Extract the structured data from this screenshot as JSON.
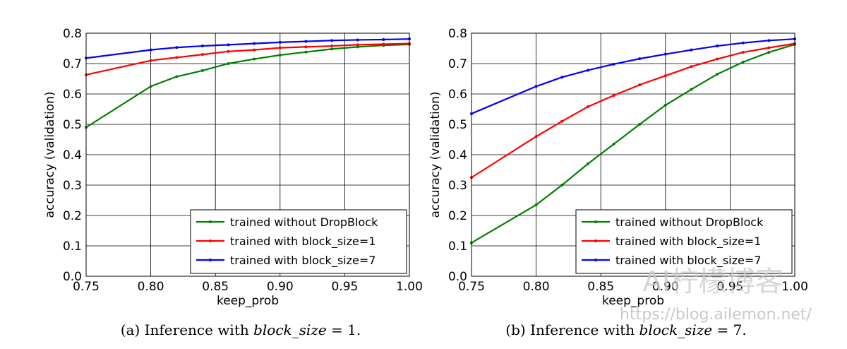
{
  "chart_data": [
    {
      "type": "line",
      "xlabel": "keep_prob",
      "ylabel": "accuracy (validation)",
      "xlim": [
        0.75,
        1.0
      ],
      "ylim": [
        0.0,
        0.8
      ],
      "xticks": [
        "0.75",
        "0.80",
        "0.85",
        "0.90",
        "0.95",
        "1.00"
      ],
      "yticks": [
        "0.0",
        "0.1",
        "0.2",
        "0.3",
        "0.4",
        "0.5",
        "0.6",
        "0.7",
        "0.8"
      ],
      "grid": true,
      "legend_position": "bottom-right",
      "x": [
        0.75,
        0.8,
        0.82,
        0.84,
        0.86,
        0.88,
        0.9,
        0.92,
        0.94,
        0.96,
        0.98,
        1.0
      ],
      "series": [
        {
          "name": "trained without DropBlock",
          "color": "#008000",
          "values": [
            0.49,
            0.625,
            0.657,
            0.677,
            0.7,
            0.715,
            0.728,
            0.738,
            0.748,
            0.755,
            0.76,
            0.763
          ]
        },
        {
          "name": "trained with block_size=1",
          "color": "#ff0000",
          "values": [
            0.663,
            0.71,
            0.72,
            0.73,
            0.74,
            0.745,
            0.752,
            0.755,
            0.758,
            0.762,
            0.764,
            0.766
          ]
        },
        {
          "name": "trained with block_size=7",
          "color": "#0000ff",
          "values": [
            0.718,
            0.745,
            0.753,
            0.758,
            0.762,
            0.766,
            0.77,
            0.773,
            0.776,
            0.778,
            0.779,
            0.781
          ]
        }
      ],
      "caption_prefix": "(a) Inference with ",
      "caption_math": "block_size",
      "caption_suffix": " = 1."
    },
    {
      "type": "line",
      "xlabel": "keep_prob",
      "ylabel": "accuracy (validation)",
      "xlim": [
        0.75,
        1.0
      ],
      "ylim": [
        0.0,
        0.8
      ],
      "xticks": [
        "0.75",
        "0.80",
        "0.85",
        "0.90",
        "0.95",
        "1.00"
      ],
      "yticks": [
        "0.0",
        "0.1",
        "0.2",
        "0.3",
        "0.4",
        "0.5",
        "0.6",
        "0.7",
        "0.8"
      ],
      "grid": true,
      "legend_position": "bottom-right",
      "x": [
        0.75,
        0.8,
        0.82,
        0.84,
        0.86,
        0.88,
        0.9,
        0.92,
        0.94,
        0.96,
        0.98,
        1.0
      ],
      "series": [
        {
          "name": "trained without DropBlock",
          "color": "#008000",
          "values": [
            0.11,
            0.235,
            0.3,
            0.37,
            0.435,
            0.5,
            0.563,
            0.615,
            0.665,
            0.705,
            0.737,
            0.763
          ]
        },
        {
          "name": "trained with block_size=1",
          "color": "#ff0000",
          "values": [
            0.325,
            0.46,
            0.51,
            0.558,
            0.595,
            0.63,
            0.66,
            0.69,
            0.715,
            0.737,
            0.752,
            0.766
          ]
        },
        {
          "name": "trained with block_size=7",
          "color": "#0000ff",
          "values": [
            0.535,
            0.625,
            0.655,
            0.678,
            0.698,
            0.716,
            0.731,
            0.745,
            0.758,
            0.768,
            0.776,
            0.781
          ]
        }
      ],
      "caption_prefix": "(b) Inference with ",
      "caption_math": "block_size",
      "caption_suffix": " = 7."
    }
  ],
  "watermark": {
    "title": "AI柠檬博客",
    "url": "https://blog.ailemon.net/"
  }
}
